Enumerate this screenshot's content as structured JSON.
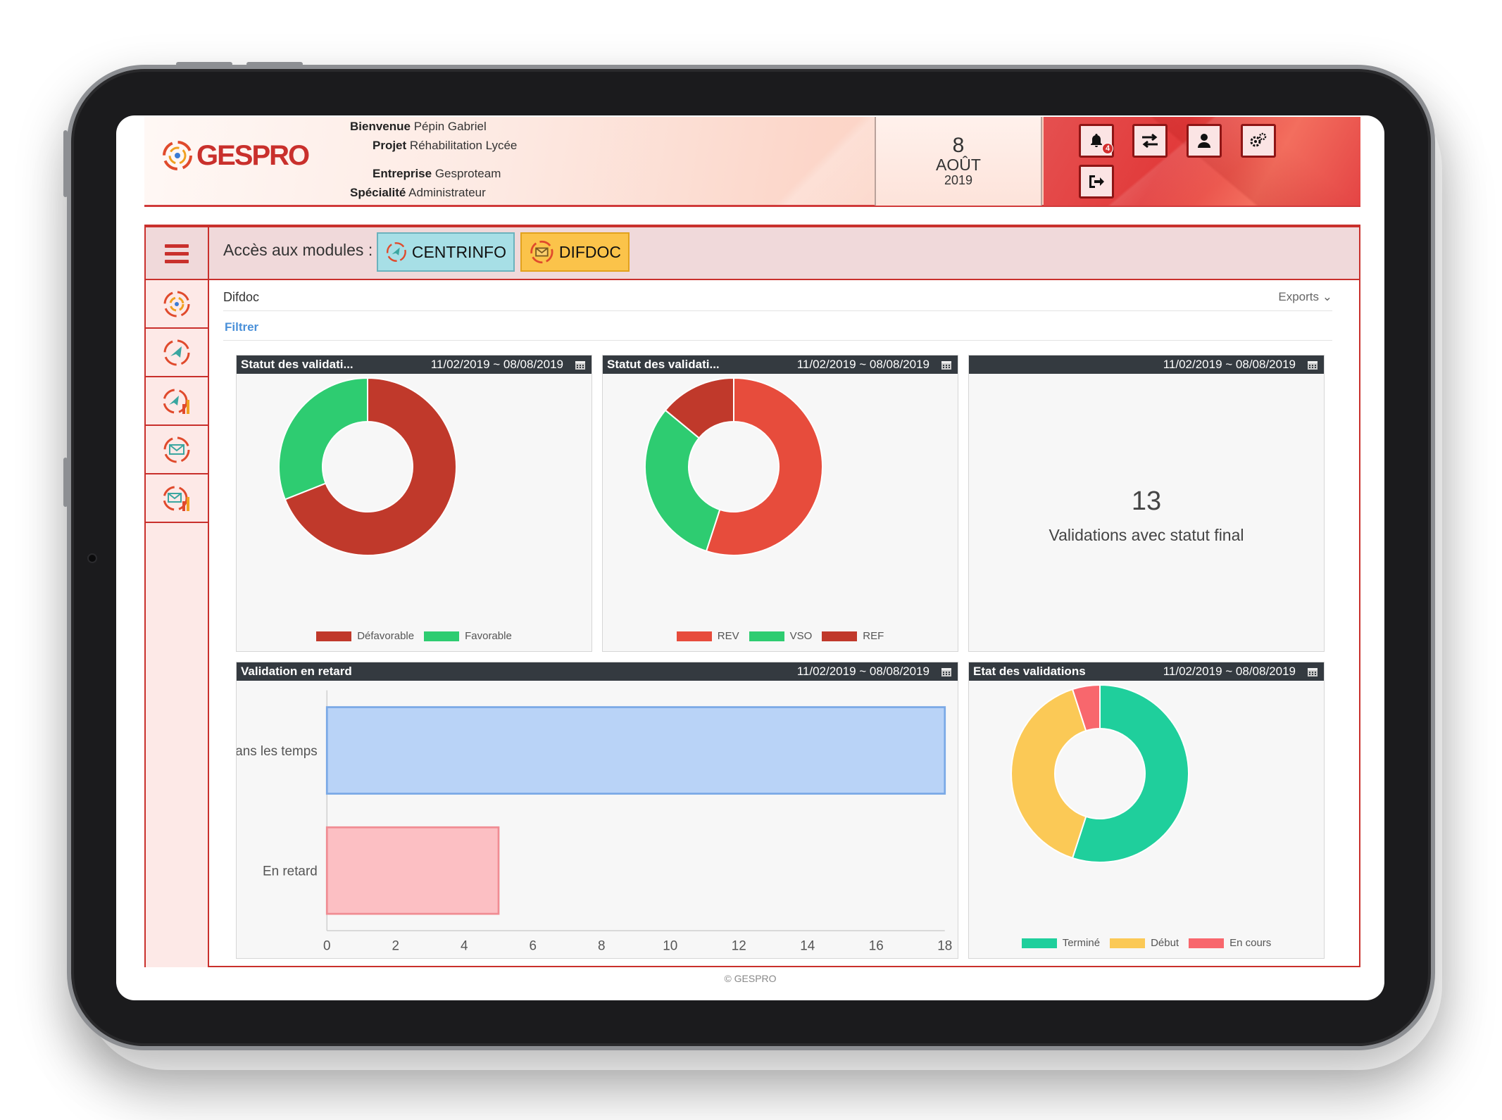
{
  "header": {
    "logo_text": "GESPRO",
    "welcome_label": "Bienvenue",
    "welcome_value": "Pépin Gabriel",
    "project_label": "Projet",
    "project_value": "Réhabilitation Lycée",
    "company_label": "Entreprise",
    "company_value": "Gesproteam",
    "specialty_label": "Spécialité",
    "specialty_value": "Administrateur",
    "notification_count": "4"
  },
  "date": {
    "day": "8",
    "month": "AOÛT",
    "year": "2019"
  },
  "modules": {
    "label": "Accès aux modules :",
    "items": [
      {
        "label": "CENTRINFO",
        "color": "#a7dfe6"
      },
      {
        "label": "DIFDOC",
        "color": "#fbc34a"
      }
    ]
  },
  "breadcrumb": "Difdoc",
  "exports_label": "Exports",
  "filter_label": "Filtrer",
  "panels": {
    "p1": {
      "title": "Statut des validati...",
      "range": "11/02/2019 ~ 08/08/2019"
    },
    "p2": {
      "title": "Statut des validati...",
      "range": "11/02/2019 ~ 08/08/2019"
    },
    "p3": {
      "title": "",
      "range": "11/02/2019 ~ 08/08/2019",
      "kpi_value": "13",
      "kpi_label": "Validations avec statut final"
    },
    "p4": {
      "title": "Validation en retard",
      "range": "11/02/2019 ~ 08/08/2019"
    },
    "p5": {
      "title": "Etat des validations",
      "range": "11/02/2019 ~ 08/08/2019"
    }
  },
  "chart_data": [
    {
      "type": "pie",
      "donut": true,
      "categories": [
        "Défavorable",
        "Favorable"
      ],
      "values": [
        69,
        31
      ],
      "colors": [
        "#c0392b",
        "#2ecc71"
      ],
      "legend": "bottom"
    },
    {
      "type": "pie",
      "donut": true,
      "categories": [
        "REV",
        "VSO",
        "REF"
      ],
      "values": [
        55,
        31,
        14
      ],
      "colors": [
        "#e74c3c",
        "#2ecc71",
        "#c0392b"
      ],
      "legend": "bottom"
    },
    {
      "type": "bar",
      "orientation": "horizontal",
      "categories": [
        "Dans les temps",
        "En retard"
      ],
      "values": [
        18,
        5
      ],
      "colors": [
        "#b9d3f7",
        "#fcbfc3"
      ],
      "border_colors": [
        "#7aa9e6",
        "#f08c93"
      ],
      "xlim": [
        0,
        18
      ],
      "xticks": [
        "0",
        "2",
        "4",
        "6",
        "8",
        "10",
        "12",
        "14",
        "16",
        "18"
      ]
    },
    {
      "type": "pie",
      "donut": true,
      "categories": [
        "Terminé",
        "Début",
        "En cours"
      ],
      "values": [
        55,
        40,
        5
      ],
      "colors": [
        "#1fcf9c",
        "#fbc956",
        "#f8676d"
      ],
      "legend": "bottom"
    }
  ],
  "footer": "© GESPRO"
}
